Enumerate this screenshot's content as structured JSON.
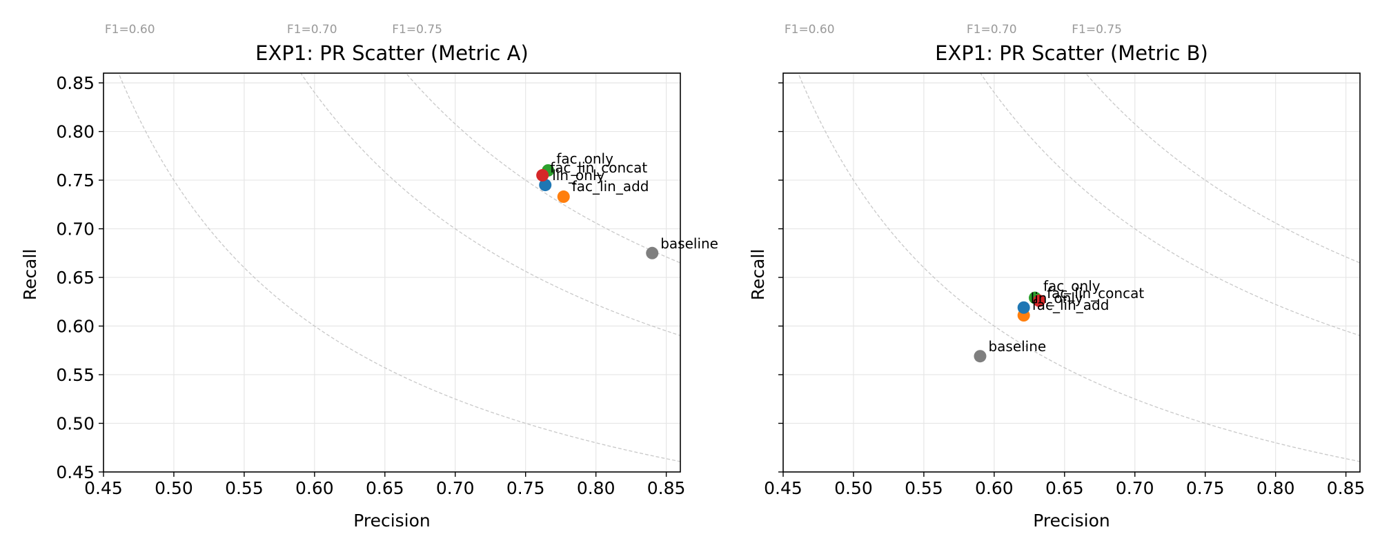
{
  "chart_data": [
    {
      "type": "scatter",
      "title": "EXP1: PR Scatter (Metric A)",
      "xlabel": "Precision",
      "ylabel": "Recall",
      "xlim": [
        0.45,
        0.86
      ],
      "ylim": [
        0.45,
        0.86
      ],
      "xticks": [
        "0.45",
        "0.50",
        "0.55",
        "0.60",
        "0.65",
        "0.70",
        "0.75",
        "0.80",
        "0.85"
      ],
      "yticks": [
        "0.45",
        "0.50",
        "0.55",
        "0.60",
        "0.65",
        "0.70",
        "0.75",
        "0.80",
        "0.85"
      ],
      "grid": true,
      "f1_curves": [
        {
          "f1": 0.6,
          "label": "F1=0.60"
        },
        {
          "f1": 0.7,
          "label": "F1=0.70"
        },
        {
          "f1": 0.75,
          "label": "F1=0.75"
        }
      ],
      "points": [
        {
          "label": "fac_only",
          "x": 0.766,
          "y": 0.76,
          "color": "#2ca02c"
        },
        {
          "label": "fac_lin_concat",
          "x": 0.762,
          "y": 0.755,
          "color": "#d62728"
        },
        {
          "label": "lin_only",
          "x": 0.764,
          "y": 0.745,
          "color": "#1f77b4"
        },
        {
          "label": "fac_lin_add",
          "x": 0.777,
          "y": 0.733,
          "color": "#ff7f0e"
        },
        {
          "label": "baseline",
          "x": 0.84,
          "y": 0.675,
          "color": "#7f7f7f"
        }
      ]
    },
    {
      "type": "scatter",
      "title": "EXP1: PR Scatter (Metric B)",
      "xlabel": "Precision",
      "ylabel": "Recall",
      "xlim": [
        0.45,
        0.86
      ],
      "ylim": [
        0.45,
        0.86
      ],
      "xticks": [
        "0.45",
        "0.50",
        "0.55",
        "0.60",
        "0.65",
        "0.70",
        "0.75",
        "0.80",
        "0.85"
      ],
      "yticks": [],
      "grid": true,
      "f1_curves": [
        {
          "f1": 0.6,
          "label": "F1=0.60"
        },
        {
          "f1": 0.7,
          "label": "F1=0.70"
        },
        {
          "f1": 0.75,
          "label": "F1=0.75"
        }
      ],
      "points": [
        {
          "label": "fac_only",
          "x": 0.629,
          "y": 0.629,
          "color": "#2ca02c"
        },
        {
          "label": "fac_lin_concat",
          "x": 0.632,
          "y": 0.626,
          "color": "#d62728"
        },
        {
          "label": "lin_only",
          "x": 0.621,
          "y": 0.619,
          "color": "#1f77b4"
        },
        {
          "label": "fac_lin_add",
          "x": 0.621,
          "y": 0.611,
          "color": "#ff7f0e"
        },
        {
          "label": "baseline",
          "x": 0.59,
          "y": 0.569,
          "color": "#7f7f7f"
        }
      ]
    }
  ]
}
